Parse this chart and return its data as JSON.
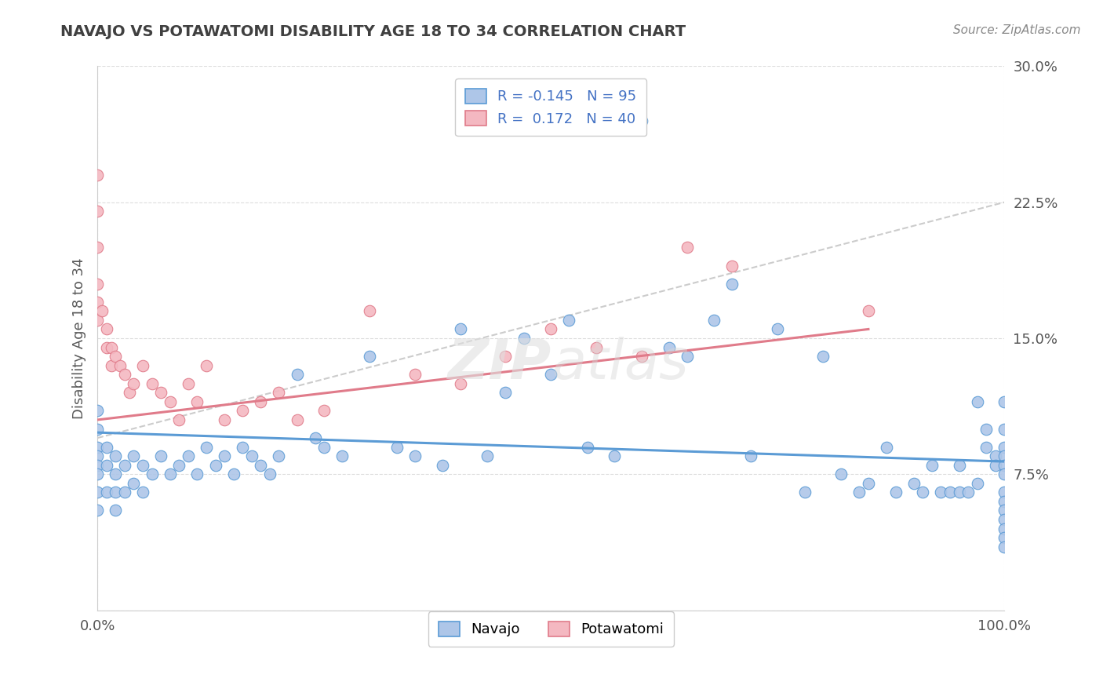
{
  "title": "NAVAJO VS POTAWATOMI DISABILITY AGE 18 TO 34 CORRELATION CHART",
  "source": "Source: ZipAtlas.com",
  "ylabel_text": "Disability Age 18 to 34",
  "x_min": 0.0,
  "x_max": 1.0,
  "y_min": 0.0,
  "y_max": 0.3,
  "navajo_color": "#aec6e8",
  "potawatomi_color": "#f4b8c1",
  "navajo_line_color": "#5b9bd5",
  "potawatomi_line_color": "#e07b8a",
  "trend_line_color": "#cccccc",
  "R_navajo": -0.145,
  "N_navajo": 95,
  "R_potawatomi": 0.172,
  "N_potawatomi": 40,
  "background_color": "#ffffff",
  "grid_color": "#dddddd",
  "legend_text_color": "#4472c4",
  "title_color": "#404040",
  "axis_label_color": "#595959",
  "navajo_x": [
    0.0,
    0.0,
    0.0,
    0.0,
    0.0,
    0.0,
    0.0,
    0.0,
    0.01,
    0.01,
    0.01,
    0.02,
    0.02,
    0.02,
    0.02,
    0.03,
    0.03,
    0.04,
    0.04,
    0.05,
    0.05,
    0.06,
    0.07,
    0.08,
    0.09,
    0.1,
    0.11,
    0.12,
    0.13,
    0.14,
    0.15,
    0.16,
    0.17,
    0.18,
    0.19,
    0.2,
    0.22,
    0.24,
    0.25,
    0.27,
    0.3,
    0.33,
    0.35,
    0.38,
    0.4,
    0.43,
    0.45,
    0.47,
    0.5,
    0.52,
    0.54,
    0.57,
    0.6,
    0.63,
    0.65,
    0.68,
    0.7,
    0.72,
    0.75,
    0.78,
    0.8,
    0.82,
    0.84,
    0.85,
    0.87,
    0.88,
    0.9,
    0.91,
    0.92,
    0.93,
    0.94,
    0.95,
    0.95,
    0.96,
    0.97,
    0.97,
    0.98,
    0.98,
    0.99,
    0.99,
    1.0,
    1.0,
    1.0,
    1.0,
    1.0,
    1.0,
    1.0,
    1.0,
    1.0,
    1.0,
    1.0,
    1.0,
    1.0
  ],
  "navajo_y": [
    0.11,
    0.1,
    0.09,
    0.085,
    0.08,
    0.075,
    0.065,
    0.055,
    0.09,
    0.08,
    0.065,
    0.085,
    0.075,
    0.065,
    0.055,
    0.08,
    0.065,
    0.085,
    0.07,
    0.08,
    0.065,
    0.075,
    0.085,
    0.075,
    0.08,
    0.085,
    0.075,
    0.09,
    0.08,
    0.085,
    0.075,
    0.09,
    0.085,
    0.08,
    0.075,
    0.085,
    0.13,
    0.095,
    0.09,
    0.085,
    0.14,
    0.09,
    0.085,
    0.08,
    0.155,
    0.085,
    0.12,
    0.15,
    0.13,
    0.16,
    0.09,
    0.085,
    0.27,
    0.145,
    0.14,
    0.16,
    0.18,
    0.085,
    0.155,
    0.065,
    0.14,
    0.075,
    0.065,
    0.07,
    0.09,
    0.065,
    0.07,
    0.065,
    0.08,
    0.065,
    0.065,
    0.065,
    0.08,
    0.065,
    0.07,
    0.115,
    0.1,
    0.09,
    0.085,
    0.08,
    0.115,
    0.1,
    0.09,
    0.085,
    0.08,
    0.075,
    0.065,
    0.06,
    0.055,
    0.05,
    0.045,
    0.04,
    0.035
  ],
  "potawatomi_x": [
    0.0,
    0.0,
    0.0,
    0.0,
    0.0,
    0.0,
    0.005,
    0.01,
    0.01,
    0.015,
    0.015,
    0.02,
    0.025,
    0.03,
    0.035,
    0.04,
    0.05,
    0.06,
    0.07,
    0.08,
    0.09,
    0.1,
    0.11,
    0.12,
    0.14,
    0.16,
    0.18,
    0.2,
    0.22,
    0.25,
    0.3,
    0.35,
    0.4,
    0.45,
    0.5,
    0.55,
    0.6,
    0.65,
    0.7,
    0.85
  ],
  "potawatomi_y": [
    0.24,
    0.22,
    0.2,
    0.18,
    0.17,
    0.16,
    0.165,
    0.155,
    0.145,
    0.145,
    0.135,
    0.14,
    0.135,
    0.13,
    0.12,
    0.125,
    0.135,
    0.125,
    0.12,
    0.115,
    0.105,
    0.125,
    0.115,
    0.135,
    0.105,
    0.11,
    0.115,
    0.12,
    0.105,
    0.11,
    0.165,
    0.13,
    0.125,
    0.14,
    0.155,
    0.145,
    0.14,
    0.2,
    0.19,
    0.165
  ],
  "nav_trend_x0": 0.0,
  "nav_trend_x1": 1.0,
  "nav_trend_y0": 0.098,
  "nav_trend_y1": 0.082,
  "pot_trend_x0": 0.0,
  "pot_trend_x1": 0.85,
  "pot_trend_y0": 0.105,
  "pot_trend_y1": 0.155,
  "gray_trend_x0": 0.0,
  "gray_trend_x1": 1.0,
  "gray_trend_y0": 0.095,
  "gray_trend_y1": 0.225
}
